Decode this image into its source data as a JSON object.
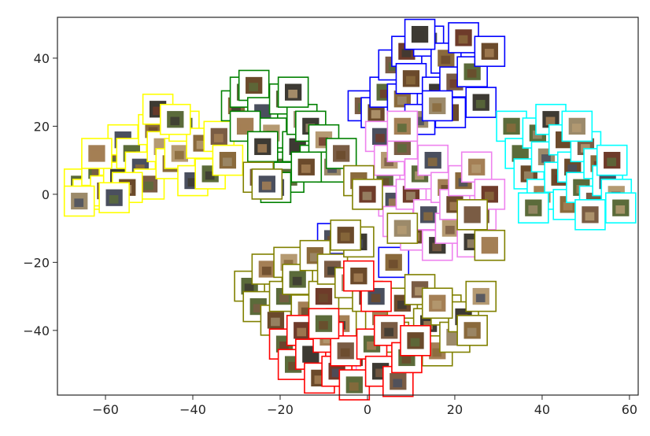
{
  "chart_data": {
    "type": "scatter",
    "title": "",
    "xlabel": "",
    "ylabel": "",
    "xlim": [
      -71,
      62
    ],
    "ylim": [
      -59,
      52
    ],
    "xticks": [
      -60,
      -40,
      -20,
      0,
      20,
      40,
      60
    ],
    "yticks": [
      40,
      20,
      0,
      -20,
      -40
    ],
    "xtick_labels": [
      "−60",
      "−40",
      "−20",
      "0",
      "20",
      "40",
      "60"
    ],
    "ytick_labels": [
      "40",
      "20",
      "0",
      "−20",
      "−40"
    ],
    "marker": "image thumbnail with colored square frame",
    "grid": false,
    "series": [
      {
        "color": "#ffff00",
        "points": [
          [
            -66,
            3
          ],
          [
            -64,
            0
          ],
          [
            -62,
            7
          ],
          [
            -60,
            1
          ],
          [
            -58,
            10
          ],
          [
            -57,
            5
          ],
          [
            -56,
            16
          ],
          [
            -54,
            12
          ],
          [
            -52,
            8
          ],
          [
            -50,
            3
          ],
          [
            -49,
            19
          ],
          [
            -47,
            14
          ],
          [
            -45,
            9
          ],
          [
            -43,
            12
          ],
          [
            -42,
            20
          ],
          [
            -40,
            4
          ],
          [
            -38,
            15
          ],
          [
            -36,
            6
          ],
          [
            -34,
            17
          ],
          [
            -32,
            10
          ],
          [
            -62,
            12
          ],
          [
            -55,
            2
          ],
          [
            -48,
            25
          ],
          [
            -44,
            22
          ],
          [
            -58,
            -1
          ],
          [
            -66,
            -2
          ]
        ]
      },
      {
        "color": "#008000",
        "points": [
          [
            -30,
            26
          ],
          [
            -28,
            30
          ],
          [
            -26,
            32
          ],
          [
            -24,
            24
          ],
          [
            -22,
            18
          ],
          [
            -20,
            8
          ],
          [
            -19,
            28
          ],
          [
            -18,
            5
          ],
          [
            -16,
            14
          ],
          [
            -15,
            22
          ],
          [
            -13,
            20
          ],
          [
            -12,
            10
          ],
          [
            -10,
            16
          ],
          [
            -8,
            8
          ],
          [
            -6,
            12
          ],
          [
            -28,
            20
          ],
          [
            -24,
            14
          ],
          [
            -21,
            2
          ],
          [
            -17,
            30
          ],
          [
            -14,
            8
          ]
        ]
      },
      {
        "color": "#0000ff",
        "points": [
          [
            -1,
            26
          ],
          [
            2,
            24
          ],
          [
            4,
            30
          ],
          [
            6,
            38
          ],
          [
            8,
            28
          ],
          [
            9,
            42
          ],
          [
            10,
            34
          ],
          [
            12,
            22
          ],
          [
            14,
            45
          ],
          [
            16,
            30
          ],
          [
            18,
            40
          ],
          [
            19,
            24
          ],
          [
            20,
            33
          ],
          [
            22,
            46
          ],
          [
            24,
            36
          ],
          [
            26,
            27
          ],
          [
            28,
            42
          ],
          [
            12,
            47
          ],
          [
            16,
            26
          ],
          [
            6,
            -20
          ],
          [
            -8,
            -13
          ]
        ]
      },
      {
        "color": "#00ffff",
        "points": [
          [
            33,
            20
          ],
          [
            35,
            12
          ],
          [
            37,
            6
          ],
          [
            39,
            18
          ],
          [
            40,
            0
          ],
          [
            41,
            11
          ],
          [
            42,
            22
          ],
          [
            44,
            5
          ],
          [
            45,
            16
          ],
          [
            46,
            -3
          ],
          [
            47,
            8
          ],
          [
            49,
            2
          ],
          [
            50,
            14
          ],
          [
            52,
            -2
          ],
          [
            53,
            9
          ],
          [
            55,
            4
          ],
          [
            57,
            0
          ],
          [
            58,
            -4
          ],
          [
            56,
            10
          ],
          [
            38,
            -4
          ],
          [
            48,
            20
          ],
          [
            51,
            -6
          ]
        ]
      },
      {
        "color": "#ee82ee",
        "points": [
          [
            3,
            17
          ],
          [
            4,
            4
          ],
          [
            5,
            10
          ],
          [
            6,
            -2
          ],
          [
            7,
            -8
          ],
          [
            8,
            14
          ],
          [
            10,
            0
          ],
          [
            11,
            -12
          ],
          [
            12,
            6
          ],
          [
            14,
            -6
          ],
          [
            15,
            10
          ],
          [
            16,
            -15
          ],
          [
            18,
            2
          ],
          [
            19,
            -10
          ],
          [
            20,
            -3
          ],
          [
            22,
            4
          ],
          [
            24,
            -14
          ],
          [
            25,
            8
          ],
          [
            26,
            -6
          ],
          [
            28,
            0
          ],
          [
            8,
            20
          ],
          [
            -3,
            -48
          ],
          [
            -6,
            -52
          ]
        ]
      },
      {
        "color": "#808000",
        "points": [
          [
            -27,
            -27
          ],
          [
            -25,
            -33
          ],
          [
            -23,
            -22
          ],
          [
            -21,
            -37
          ],
          [
            -19,
            -30
          ],
          [
            -18,
            -20
          ],
          [
            -16,
            -25
          ],
          [
            -14,
            -34
          ],
          [
            -12,
            -18
          ],
          [
            -10,
            -30
          ],
          [
            -8,
            -22
          ],
          [
            -6,
            -38
          ],
          [
            -4,
            -26
          ],
          [
            -2,
            -14
          ],
          [
            0,
            -30
          ],
          [
            3,
            -36
          ],
          [
            6,
            -42
          ],
          [
            8,
            -32
          ],
          [
            10,
            -44
          ],
          [
            12,
            -28
          ],
          [
            14,
            -38
          ],
          [
            16,
            -46
          ],
          [
            18,
            -34
          ],
          [
            20,
            -42
          ],
          [
            22,
            -36
          ],
          [
            24,
            -40
          ],
          [
            26,
            -30
          ],
          [
            28,
            -15
          ],
          [
            24,
            -6
          ],
          [
            -2,
            4
          ],
          [
            0,
            0
          ],
          [
            -25,
            5
          ],
          [
            -23,
            3
          ],
          [
            -5,
            -12
          ],
          [
            16,
            -32
          ],
          [
            8,
            -10
          ]
        ]
      },
      {
        "color": "#ff0000",
        "points": [
          [
            -19,
            -44
          ],
          [
            -17,
            -50
          ],
          [
            -15,
            -40
          ],
          [
            -13,
            -47
          ],
          [
            -11,
            -54
          ],
          [
            -9,
            -42
          ],
          [
            -7,
            -52
          ],
          [
            -5,
            -46
          ],
          [
            -3,
            -56
          ],
          [
            1,
            -44
          ],
          [
            3,
            -52
          ],
          [
            5,
            -40
          ],
          [
            7,
            -55
          ],
          [
            9,
            -48
          ],
          [
            11,
            -43
          ],
          [
            -10,
            -38
          ],
          [
            2,
            -30
          ],
          [
            -2,
            -24
          ]
        ]
      }
    ]
  }
}
